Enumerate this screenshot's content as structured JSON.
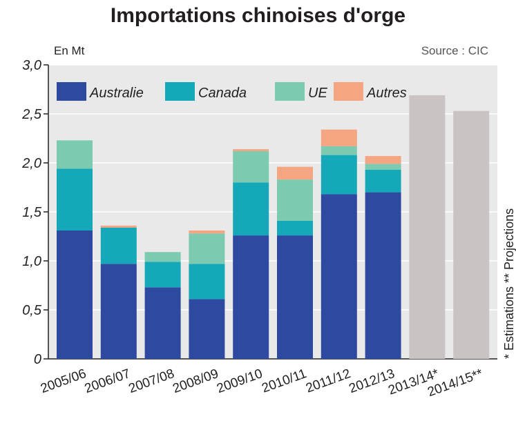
{
  "chart_data": {
    "type": "bar",
    "stacked": true,
    "title": "Importations chinoises d'orge",
    "unit_label": "En Mt",
    "source": "Source : CIC",
    "note": "* Estimations ** Projections",
    "categories": [
      "2005/06",
      "2006/07",
      "2007/08",
      "2008/09",
      "2009/10",
      "2010/11",
      "2011/12",
      "2012/13",
      "2013/14*",
      "2014/15**"
    ],
    "ylim": [
      0,
      3.0
    ],
    "yticks": [
      "0",
      "0,5",
      "1,0",
      "1,5",
      "2,0",
      "2,5",
      "3,0"
    ],
    "grid": true,
    "legend_position": "top",
    "series": [
      {
        "name": "Australie",
        "color": "#2e4aa0",
        "values": [
          1.31,
          0.97,
          0.73,
          0.61,
          1.26,
          1.26,
          1.68,
          1.7,
          null,
          null
        ]
      },
      {
        "name": "Canada",
        "color": "#15a8b8",
        "values": [
          0.63,
          0.37,
          0.26,
          0.36,
          0.54,
          0.15,
          0.4,
          0.23,
          null,
          null
        ]
      },
      {
        "name": "UE",
        "color": "#7ccbb0",
        "values": [
          0.29,
          0.0,
          0.1,
          0.31,
          0.32,
          0.42,
          0.09,
          0.06,
          null,
          null
        ]
      },
      {
        "name": "Autres",
        "color": "#f4a582",
        "values": [
          0.0,
          0.02,
          0.0,
          0.03,
          0.02,
          0.13,
          0.17,
          0.08,
          null,
          null
        ]
      }
    ],
    "totals_only": {
      "color": "#c9c3c4",
      "values": [
        null,
        null,
        null,
        null,
        null,
        null,
        null,
        null,
        2.69,
        2.53
      ]
    }
  }
}
